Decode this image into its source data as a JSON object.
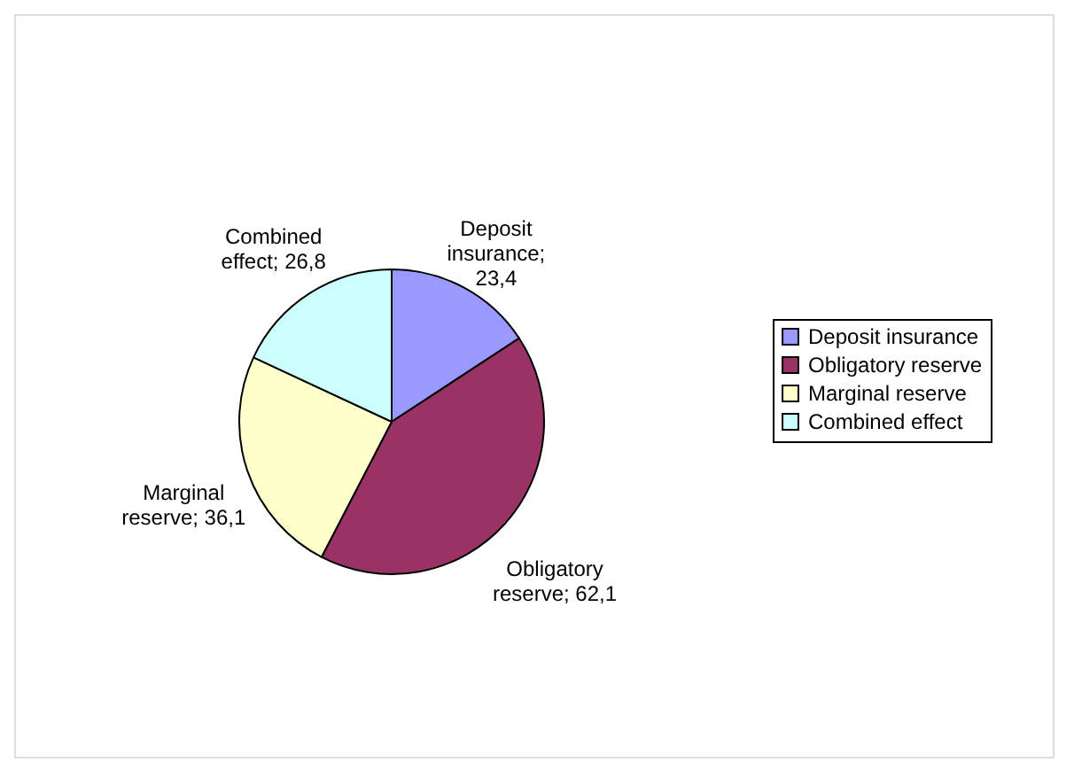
{
  "chart_data": {
    "type": "pie",
    "categories": [
      "Deposit insurance",
      "Obligatory reserve",
      "Marginal reserve",
      "Combined effect"
    ],
    "values": [
      23.4,
      62.1,
      36.1,
      26.8
    ],
    "colors": [
      "#9999ff",
      "#993366",
      "#ffffcc",
      "#ccffff"
    ],
    "value_labels": [
      "Deposit insurance; 23,4",
      "Obligatory reserve; 62,1",
      "Marginal reserve; 36,1",
      "Combined effect; 26,8"
    ],
    "legend": "right"
  }
}
